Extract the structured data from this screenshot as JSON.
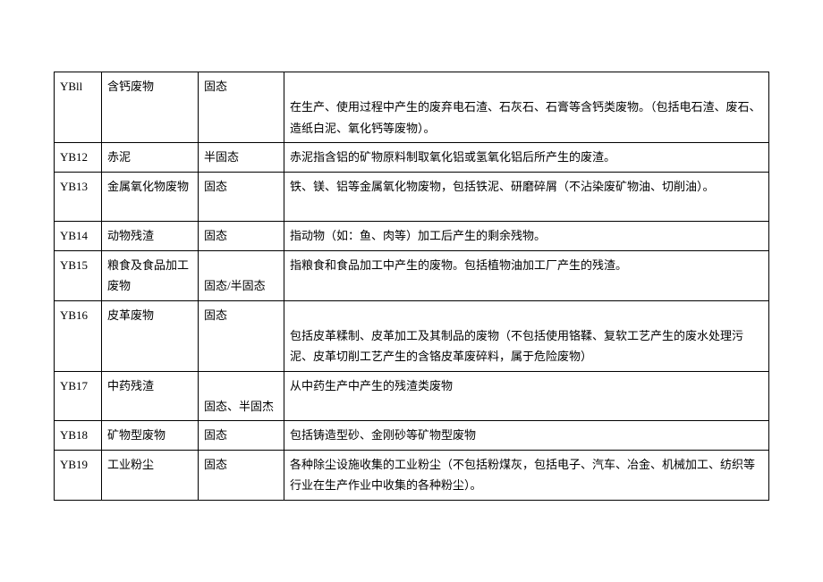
{
  "table": {
    "columns": {
      "code_width": 53,
      "name_width": 108,
      "state_width": 96
    },
    "border_color": "#000000",
    "font_size": 13,
    "font_family": "SimSun",
    "background_color": "#ffffff",
    "text_color": "#000000",
    "rows": [
      {
        "code": "YBll",
        "name": "含钙废物",
        "state": "固态",
        "desc_line1": "",
        "desc_line2": "在生产、使用过程中产生的废弃电石渣、石灰石、石膏等含钙类废物。（包括电石渣、废石、造纸白泥、氧化钙等废物）。"
      },
      {
        "code": "YB12",
        "name": "赤泥",
        "state": "半固态",
        "desc": "赤泥指含铝的矿物原料制取氧化铝或氢氧化铝后所产生的废渣。"
      },
      {
        "code": "YB13",
        "name": "金属氧化物废物",
        "state": "固态",
        "desc": "铁、镁、铝等金属氧化物废物，包括铁泥、研磨碎屑（不沾染废矿物油、切削油）。"
      },
      {
        "code": "YB14",
        "name": "动物残渣",
        "state": "固态",
        "desc": "指动物（如：鱼、肉等）加工后产生的剩余残物。"
      },
      {
        "code": "YB15",
        "name": "粮食及食品加工废物",
        "state": "固态/半固态",
        "desc": "指粮食和食品加工中产生的废物。包括植物油加工厂产生的残渣。"
      },
      {
        "code": "YB16",
        "name": "皮革废物",
        "state": "固态",
        "desc_line1": "",
        "desc_line2": "包括皮革糅制、皮革加工及其制品的废物（不包括使用铬鞣、复软工艺产生的废水处理污泥、皮革切削工艺产生的含铬皮革废碎料，属于危险废物）"
      },
      {
        "code": "YB17",
        "name": "中药残渣",
        "state": "固态、半固杰",
        "desc": "从中药生产中产生的残渣类废物"
      },
      {
        "code": "YB18",
        "name": "矿物型废物",
        "state": "固态",
        "desc": "包括铸造型砂、金刚砂等矿物型废物"
      },
      {
        "code": "YB19",
        "name": "工业粉尘",
        "state": "固态",
        "desc": "各种除尘设施收集的工业粉尘（不包括粉煤灰，包括电子、汽车、冶金、机械加工、纺织等行业在生产作业中收集的各种粉尘）。"
      }
    ]
  }
}
